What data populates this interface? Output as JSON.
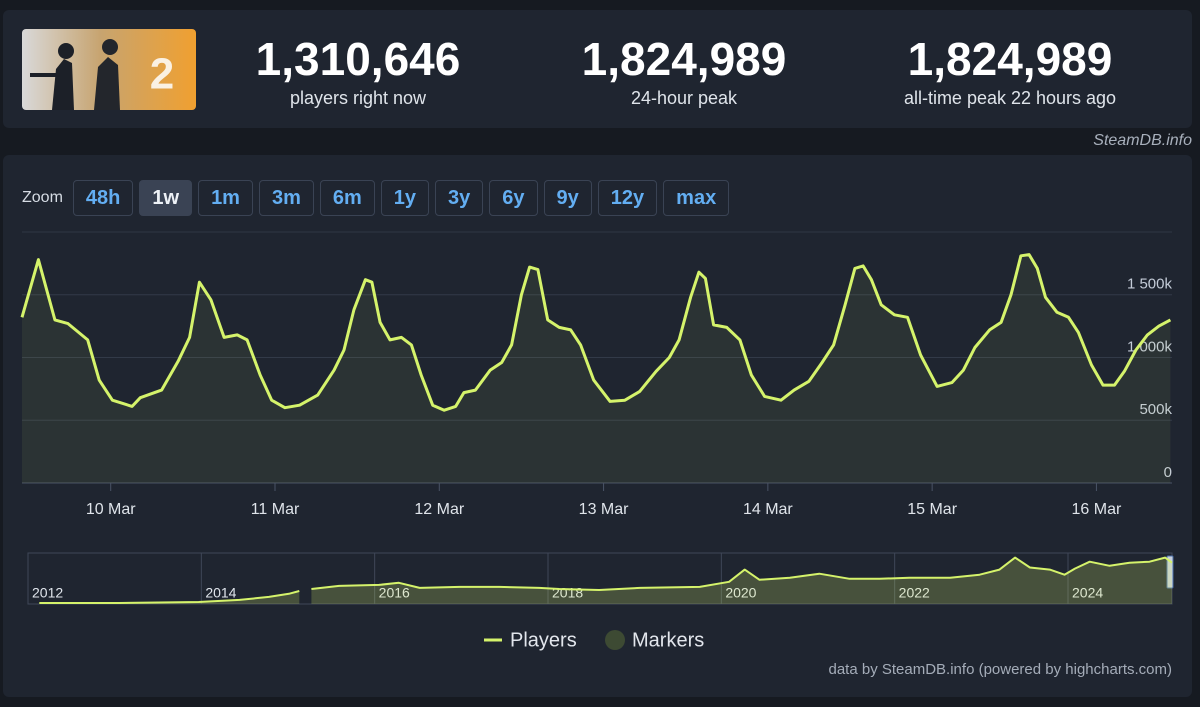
{
  "header": {
    "stats": [
      {
        "value": "1,310,646",
        "label": "players right now"
      },
      {
        "value": "1,824,989",
        "label": "24-hour peak"
      },
      {
        "value": "1,824,989",
        "label": "all-time peak 22 hours ago"
      }
    ]
  },
  "source": "SteamDB.info",
  "zoom": {
    "label": "Zoom",
    "buttons": [
      "48h",
      "1w",
      "1m",
      "3m",
      "6m",
      "1y",
      "3y",
      "6y",
      "9y",
      "12y",
      "max"
    ],
    "active_index": 1
  },
  "chart_data": [
    {
      "type": "area",
      "x": [
        9.46,
        9.56,
        9.66,
        9.74,
        9.86,
        9.93,
        10.01,
        10.13,
        10.18,
        10.31,
        10.41,
        10.48,
        10.54,
        10.61,
        10.69,
        10.77,
        10.83,
        10.91,
        10.98,
        11.06,
        11.15,
        11.26,
        11.36,
        11.42,
        11.48,
        11.55,
        11.59,
        11.64,
        11.7,
        11.77,
        11.83,
        11.89,
        11.96,
        12.03,
        12.1,
        12.15,
        12.22,
        12.31,
        12.38,
        12.44,
        12.5,
        12.55,
        12.6,
        12.66,
        12.73,
        12.8,
        12.86,
        12.94,
        13.04,
        13.13,
        13.22,
        13.32,
        13.4,
        13.46,
        13.53,
        13.58,
        13.62,
        13.67,
        13.75,
        13.83,
        13.9,
        13.98,
        14.08,
        14.16,
        14.25,
        14.33,
        14.4,
        14.47,
        14.53,
        14.58,
        14.63,
        14.69,
        14.77,
        14.85,
        14.93,
        15.03,
        15.12,
        15.19,
        15.26,
        15.35,
        15.42,
        15.48,
        15.54,
        15.59,
        15.64,
        15.69,
        15.76,
        15.83,
        15.89,
        15.97,
        16.04,
        16.11,
        16.17,
        16.24,
        16.31,
        16.38,
        16.45
      ],
      "series": [
        {
          "name": "Players",
          "color": "#d5f36b",
          "values": [
            1320000,
            1780000,
            1300000,
            1270000,
            1140000,
            820000,
            660000,
            610000,
            680000,
            740000,
            970000,
            1160000,
            1600000,
            1460000,
            1160000,
            1180000,
            1140000,
            860000,
            660000,
            600000,
            620000,
            700000,
            900000,
            1060000,
            1380000,
            1620000,
            1600000,
            1280000,
            1140000,
            1160000,
            1100000,
            860000,
            620000,
            580000,
            610000,
            720000,
            740000,
            900000,
            960000,
            1100000,
            1500000,
            1720000,
            1700000,
            1300000,
            1240000,
            1220000,
            1100000,
            820000,
            650000,
            660000,
            730000,
            890000,
            1000000,
            1140000,
            1480000,
            1680000,
            1630000,
            1260000,
            1240000,
            1140000,
            860000,
            690000,
            660000,
            740000,
            810000,
            960000,
            1100000,
            1420000,
            1710000,
            1730000,
            1620000,
            1420000,
            1340000,
            1320000,
            1020000,
            770000,
            800000,
            900000,
            1080000,
            1220000,
            1280000,
            1500000,
            1810000,
            1820000,
            1710000,
            1480000,
            1360000,
            1320000,
            1200000,
            940000,
            780000,
            780000,
            890000,
            1060000,
            1180000,
            1250000,
            1300000
          ]
        }
      ],
      "xlim": [
        9.46,
        16.46
      ],
      "xticks": [
        {
          "value": 10,
          "label": "10 Mar"
        },
        {
          "value": 11,
          "label": "11 Mar"
        },
        {
          "value": 12,
          "label": "12 Mar"
        },
        {
          "value": 13,
          "label": "13 Mar"
        },
        {
          "value": 14,
          "label": "14 Mar"
        },
        {
          "value": 15,
          "label": "15 Mar"
        },
        {
          "value": 16,
          "label": "16 Mar"
        }
      ],
      "ylim": [
        0,
        2000000
      ],
      "yticks": [
        0,
        {
          "value": 500000,
          "label": "500k"
        },
        {
          "value": 1000000,
          "label": "1 000k"
        },
        {
          "value": 1500000,
          "label": "1 500k"
        }
      ],
      "grid": true
    },
    {
      "type": "area",
      "x": [
        2012.13,
        2013.05,
        2013.97,
        2014.44,
        2014.78,
        2015.01,
        2015.13,
        2015.19,
        2015.27,
        2015.59,
        2016.05,
        2016.28,
        2016.52,
        2016.98,
        2017.44,
        2017.9,
        2018.13,
        2018.59,
        2019.06,
        2019.75,
        2020.09,
        2020.27,
        2020.44,
        2020.79,
        2021.13,
        2021.48,
        2021.83,
        2022.17,
        2022.64,
        2022.98,
        2023.21,
        2023.39,
        2023.56,
        2023.79,
        2023.96,
        2024.08,
        2024.25,
        2024.48,
        2024.71,
        2024.94,
        2025.12,
        2025.2
      ],
      "series": [
        {
          "color": "#d5f36b",
          "values": [
            40000,
            40000,
            80000,
            160000,
            280000,
            400000,
            510000,
            null,
            590000,
            710000,
            750000,
            830000,
            630000,
            670000,
            670000,
            630000,
            590000,
            550000,
            630000,
            670000,
            870000,
            1350000,
            950000,
            1030000,
            1190000,
            990000,
            990000,
            1030000,
            1030000,
            1150000,
            1350000,
            1820000,
            1430000,
            1350000,
            1150000,
            1390000,
            1660000,
            1500000,
            1620000,
            1660000,
            1820000,
            1620000
          ]
        }
      ],
      "xlim": [
        2012,
        2025.2
      ],
      "xticks": [
        2012,
        2014,
        2016,
        2018,
        2020,
        2022,
        2024
      ],
      "ylim": [
        0,
        2000000
      ]
    }
  ],
  "markers": {
    "name": "Markers",
    "color": "#3d4a33"
  },
  "credit": "data by SteamDB.info (powered by highcharts.com)"
}
